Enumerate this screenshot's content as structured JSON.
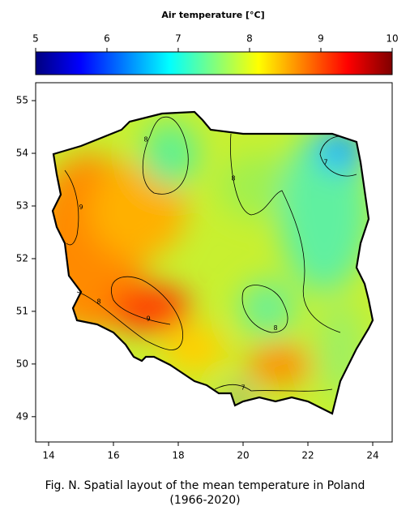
{
  "chart_data": {
    "type": "map",
    "colorbar": {
      "title": "Air temperature [°C]",
      "lim": [
        5,
        10
      ],
      "ticks": [
        5,
        6,
        7,
        8,
        9,
        10
      ],
      "colormap": [
        "#00007f",
        "#0000ff",
        "#007fff",
        "#00ffff",
        "#7fff7f",
        "#ffff00",
        "#ff7f00",
        "#ff0000",
        "#7f0000"
      ]
    },
    "xlim": [
      13.6,
      24.6
    ],
    "xticks": [
      14,
      16,
      18,
      20,
      22,
      24
    ],
    "ylim": [
      48.52,
      55.34
    ],
    "yticks": [
      49,
      50,
      51,
      52,
      53,
      54,
      55
    ],
    "contour_labels": [
      {
        "value": 8,
        "lon": 17.0,
        "lat": 54.26
      },
      {
        "value": 8,
        "lon": 19.7,
        "lat": 53.52
      },
      {
        "value": 9,
        "lon": 15.0,
        "lat": 52.98
      },
      {
        "value": 8,
        "lon": 15.55,
        "lat": 51.18
      },
      {
        "value": 9,
        "lon": 17.08,
        "lat": 50.86
      },
      {
        "value": 8,
        "lon": 21.0,
        "lat": 50.68
      },
      {
        "value": 7,
        "lon": 22.55,
        "lat": 53.83
      },
      {
        "value": 7,
        "lon": 20.0,
        "lat": 49.55
      }
    ],
    "caption": [
      "Fig. N. Spatial layout of the mean temperature in Poland",
      "(1966-2020)"
    ]
  }
}
